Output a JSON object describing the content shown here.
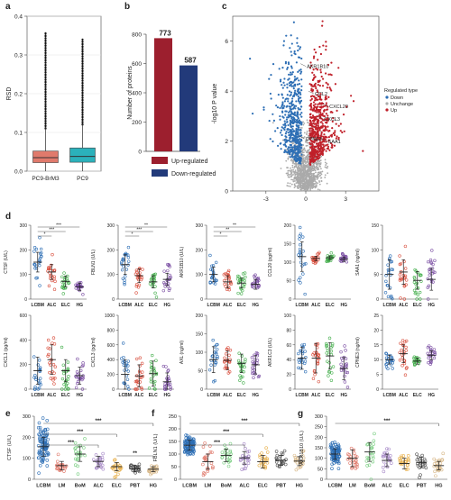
{
  "chart_data": [
    {
      "panel": "a",
      "type": "box",
      "categories": [
        "PC9-BrM3",
        "PC9"
      ],
      "ylabel": "RSD",
      "ylim": [
        0,
        0.4
      ],
      "yticks": [
        0.0,
        0.1,
        0.2,
        0.3,
        0.4
      ],
      "colors": [
        "#e07a6c",
        "#2bb1bb"
      ],
      "boxes": [
        {
          "name": "PC9-BrM3",
          "q1": 0.022,
          "median": 0.035,
          "q3": 0.052,
          "whisker_low": 0.0,
          "whisker_high": 0.11,
          "outlier_max": 0.36
        },
        {
          "name": "PC9",
          "q1": 0.023,
          "median": 0.038,
          "q3": 0.06,
          "whisker_low": 0.0,
          "whisker_high": 0.12,
          "outlier_max": 0.34
        }
      ]
    },
    {
      "panel": "b",
      "type": "bar",
      "categories": [
        "Up-regulated",
        "Down-regulated"
      ],
      "values": [
        773,
        587
      ],
      "colors": [
        "#9c1f2e",
        "#223a7a"
      ],
      "ylabel": "Number of proteins",
      "ylim": [
        0,
        800
      ],
      "yticks": [
        0,
        200,
        400,
        600,
        800
      ],
      "legend": [
        "Up-regulated",
        "Down-regulated"
      ]
    },
    {
      "panel": "c",
      "type": "scatter",
      "xlabel": "",
      "ylabel": "-log10 P value",
      "xlim": [
        -5.5,
        5.5
      ],
      "ylim": [
        0,
        7
      ],
      "xticks": [
        -3,
        0,
        3
      ],
      "yticks": [
        0,
        2,
        4,
        6
      ],
      "legend_title": "Regulated type",
      "legend": [
        "Down",
        "Unchange",
        "Up"
      ],
      "colors": {
        "Down": "#2e6fb5",
        "Unchange": "#aaaaaa",
        "Up": "#c0202a"
      },
      "labels": [
        {
          "text": "AKR1B10",
          "x": -0.4,
          "y": 5.1
        },
        {
          "text": "CCL2",
          "x": 0.2,
          "y": 4.0
        },
        {
          "text": "CXCL20",
          "x": 1.3,
          "y": 3.5
        },
        {
          "text": "CXCL3",
          "x": 0.9,
          "y": 3.0
        },
        {
          "text": "SAA1",
          "x": 1.2,
          "y": 2.1
        },
        {
          "text": "CPNE3",
          "x": -0.5,
          "y": 2.2
        }
      ]
    },
    {
      "panel": "d",
      "type": "scatter",
      "groups": [
        "LCBM",
        "ALC",
        "ELC",
        "HG"
      ],
      "group_colors": [
        "#2e6fb5",
        "#d9503f",
        "#47b04f",
        "#7b4fa3"
      ],
      "subplots": [
        {
          "ylabel": "CTSF (U/L)",
          "ylim": [
            0,
            300
          ],
          "yticks": [
            0,
            100,
            200,
            300
          ],
          "means": [
            150,
            110,
            72,
            50
          ],
          "sds": [
            40,
            30,
            22,
            15
          ],
          "sig": [
            "*",
            "***",
            "***"
          ]
        },
        {
          "ylabel": "FBLN1 (U/L)",
          "ylim": [
            0,
            300
          ],
          "yticks": [
            0,
            100,
            200,
            300
          ],
          "means": [
            140,
            95,
            70,
            80
          ],
          "sds": [
            40,
            28,
            25,
            25
          ],
          "sig": [
            "*",
            "***",
            "**"
          ]
        },
        {
          "ylabel": "AKR1B10 (U/L)",
          "ylim": [
            0,
            300
          ],
          "yticks": [
            0,
            100,
            200,
            300
          ],
          "means": [
            100,
            70,
            65,
            60
          ],
          "sds": [
            30,
            25,
            20,
            20
          ],
          "sig": [
            "*",
            "**",
            "**"
          ]
        },
        {
          "ylabel": "CCL20 (pg/ml)",
          "ylim": [
            0,
            200
          ],
          "yticks": [
            0,
            50,
            100,
            150,
            200
          ],
          "means": [
            115,
            110,
            112,
            108
          ],
          "sds": [
            40,
            6,
            5,
            6
          ],
          "sig": []
        },
        {
          "ylabel": "SAA1 (ng/ml)",
          "ylim": [
            0,
            150
          ],
          "yticks": [
            0,
            50,
            100,
            150
          ],
          "means": [
            50,
            55,
            38,
            40
          ],
          "sds": [
            30,
            25,
            18,
            22
          ],
          "sig": []
        },
        {
          "ylabel": "CXCL1 (pg/ml)",
          "ylim": [
            0,
            600
          ],
          "yticks": [
            0,
            200,
            400,
            600
          ],
          "means": [
            150,
            240,
            150,
            110
          ],
          "sds": [
            110,
            120,
            90,
            70
          ],
          "sig": []
        },
        {
          "ylabel": "CXCL3 (pg/ml)",
          "ylim": [
            0,
            1000
          ],
          "yticks": [
            0,
            200,
            400,
            600,
            800,
            1000
          ],
          "means": [
            200,
            180,
            210,
            100
          ],
          "sds": [
            200,
            150,
            170,
            120
          ],
          "sig": []
        },
        {
          "ylabel": "AXL (ng/ml)",
          "ylim": [
            0,
            200
          ],
          "yticks": [
            0,
            50,
            100,
            150,
            200
          ],
          "means": [
            80,
            78,
            70,
            66
          ],
          "sds": [
            35,
            25,
            25,
            25
          ],
          "sig": []
        },
        {
          "ylabel": "AKR1C3 (U/L)",
          "ylim": [
            0,
            100
          ],
          "yticks": [
            0,
            20,
            40,
            60,
            80,
            100
          ],
          "means": [
            42,
            42,
            45,
            28
          ],
          "sds": [
            15,
            20,
            18,
            15
          ],
          "sig": []
        },
        {
          "ylabel": "CPNE3 (ng/ml)",
          "ylim": [
            0,
            25
          ],
          "yticks": [
            0,
            5,
            10,
            15,
            20,
            25
          ],
          "means": [
            10,
            12,
            9.5,
            11.5
          ],
          "sds": [
            1.5,
            3,
            1,
            1.5
          ],
          "sig": []
        }
      ]
    },
    {
      "panel": "e",
      "type": "scatter",
      "ylabel": "CTSF (U/L)",
      "ylim": [
        0,
        300
      ],
      "yticks": [
        0,
        100,
        200,
        300
      ],
      "groups": [
        "LCBM",
        "LM",
        "BoM",
        "ALC",
        "ELC",
        "PBT",
        "HG"
      ],
      "group_colors": [
        "#2e6fb5",
        "#e07a6c",
        "#7ccf84",
        "#a98cc9",
        "#e8b04b",
        "#555555",
        "#d8b98a"
      ],
      "means": [
        155,
        65,
        120,
        85,
        60,
        50,
        48
      ],
      "sds": [
        45,
        20,
        35,
        25,
        20,
        15,
        12
      ],
      "sig": [
        "***",
        "***",
        "***",
        "**"
      ]
    },
    {
      "panel": "f",
      "type": "scatter",
      "ylabel": "FBLN1 (U/L)",
      "ylim": [
        0,
        250
      ],
      "yticks": [
        0,
        50,
        100,
        150,
        200,
        250
      ],
      "groups": [
        "LCBM",
        "LM",
        "BoM",
        "ALC",
        "ELC",
        "PBT",
        "HG"
      ],
      "group_colors": [
        "#2e6fb5",
        "#e07a6c",
        "#7ccf84",
        "#a98cc9",
        "#e8b04b",
        "#555555",
        "#d8b98a"
      ],
      "means": [
        135,
        70,
        95,
        85,
        70,
        75,
        72
      ],
      "sds": [
        20,
        30,
        25,
        25,
        25,
        20,
        18
      ],
      "sig": [
        "***",
        "***",
        "***"
      ]
    },
    {
      "panel": "g",
      "type": "scatter",
      "ylabel": "AKR1B10 (U/L)",
      "ylim": [
        0,
        300
      ],
      "yticks": [
        0,
        50,
        100,
        150,
        200,
        250,
        300
      ],
      "groups": [
        "LCBM",
        "LM",
        "BoM",
        "ALC",
        "ELC",
        "PBT",
        "HG"
      ],
      "group_colors": [
        "#2e6fb5",
        "#e07a6c",
        "#7ccf84",
        "#a98cc9",
        "#e8b04b",
        "#555555",
        "#d8b98a"
      ],
      "means": [
        120,
        100,
        130,
        90,
        75,
        80,
        65
      ],
      "sds": [
        25,
        40,
        45,
        30,
        25,
        25,
        20
      ],
      "sig": [
        "***"
      ]
    }
  ]
}
